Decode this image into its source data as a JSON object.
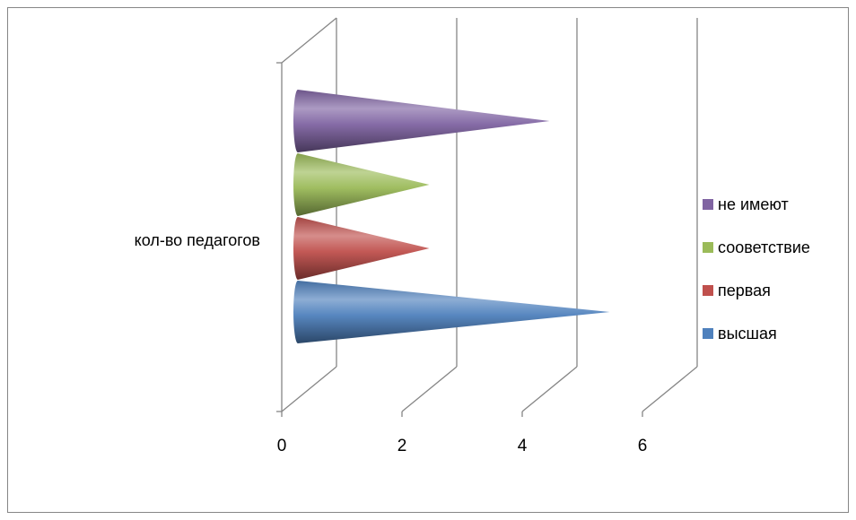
{
  "chart_data": {
    "type": "bar",
    "style": "3d-cone-horizontal",
    "categories": [
      "кол-во педагогов"
    ],
    "series": [
      {
        "name": "высшая",
        "values": [
          5
        ],
        "color": "#4f81bd"
      },
      {
        "name": "первая",
        "values": [
          2
        ],
        "color": "#c0504d"
      },
      {
        "name": "сооветствие",
        "values": [
          2
        ],
        "color": "#9bbb59"
      },
      {
        "name": "не имеют",
        "values": [
          4
        ],
        "color": "#8064a2"
      }
    ],
    "xlim": [
      0,
      6
    ],
    "xticks": [
      "0",
      "2",
      "4",
      "6"
    ],
    "grid": true,
    "legend": "right"
  }
}
